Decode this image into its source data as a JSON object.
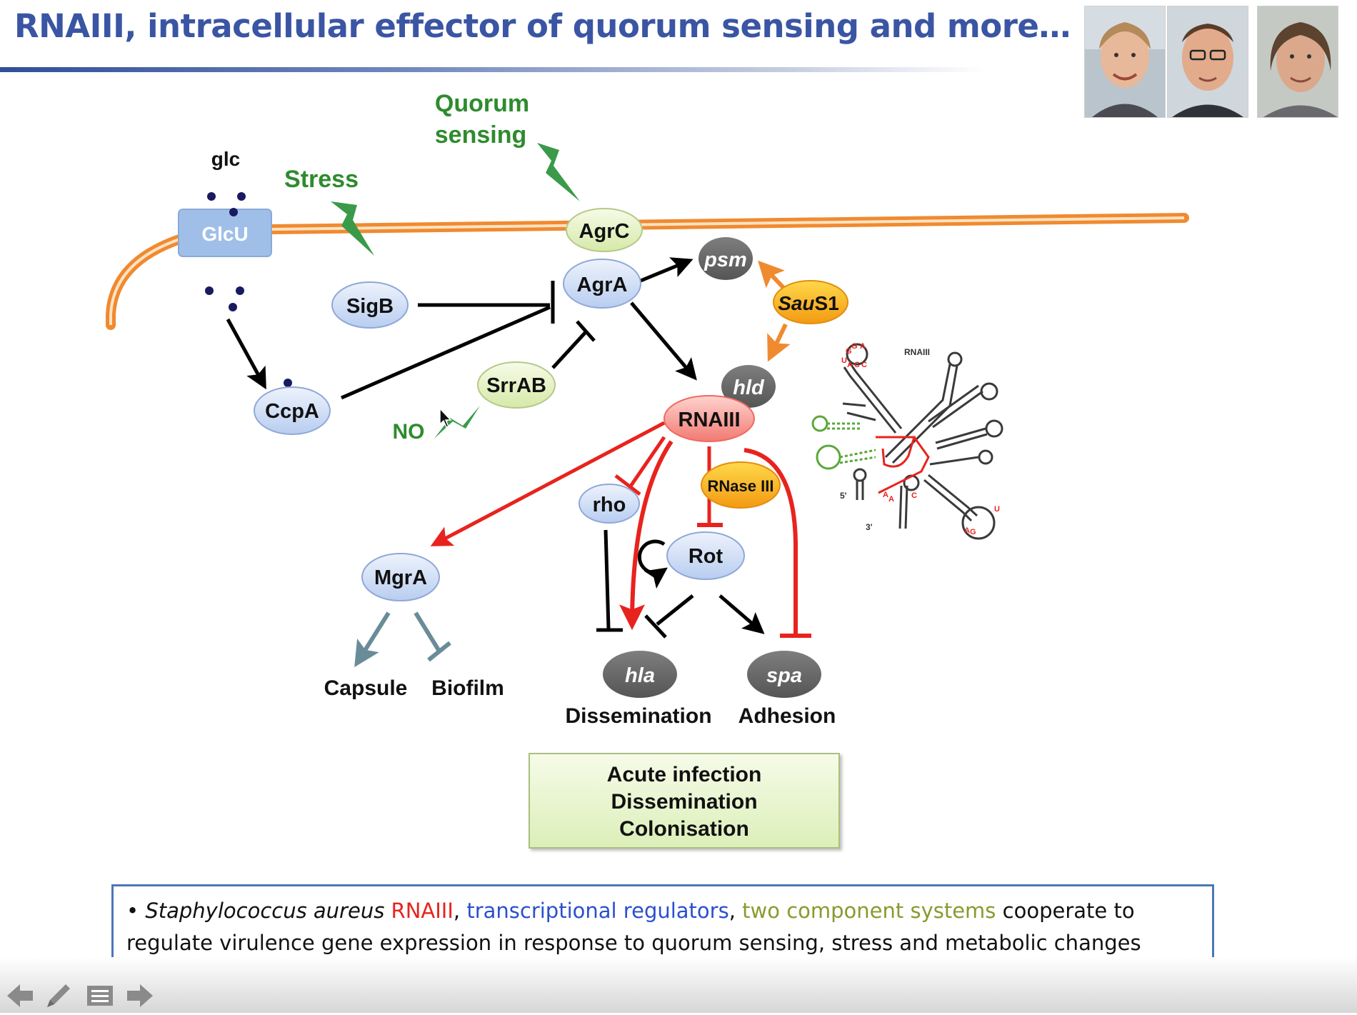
{
  "slide": {
    "title": "RNAIII, intracellular effector of quorum sensing and more…",
    "photos": [
      "portrait-1",
      "portrait-2",
      "portrait-3"
    ]
  },
  "signals": {
    "glc": "glc",
    "stress": "Stress",
    "quorum_line1": "Quorum",
    "quorum_line2": "sensing",
    "no": "NO"
  },
  "nodes": {
    "glcu": "GlcU",
    "sigb": "SigB",
    "ccpa": "CcpA",
    "agrc": "AgrC",
    "agra": "AgrA",
    "srrab": "SrrAB",
    "psm": "psm",
    "saus1_italic": "Sau",
    "saus1_rest": "S1",
    "hld": "hld",
    "rnaiii": "RNAIII",
    "rho": "rho",
    "rnase": "RNase III",
    "rot": "Rot",
    "mgra": "MgrA",
    "hla": "hla",
    "spa": "spa"
  },
  "labels": {
    "capsule": "Capsule",
    "biofilm": "Biofilm",
    "dissemination": "Dissemination",
    "adhesion": "Adhesion"
  },
  "structure": {
    "label": "RNAIII",
    "five_prime": "5'",
    "three_prime": "3'"
  },
  "outcome": {
    "line1": "Acute infection",
    "line2": "Dissemination",
    "line3": "Colonisation"
  },
  "summary": {
    "bullet": "•",
    "species": "Staphylococcus aureus",
    "rnaiii": "RNAIII",
    "sep1": ",",
    "regulators": "transcriptional regulators",
    "sep2": ",",
    "tcs": "two component systems",
    "rest1": "cooperate to",
    "rest2": "regulate virulence gene expression in response to quorum sensing, stress and metabolic changes"
  },
  "colors": {
    "title": "#3a55a3",
    "green_signal": "#2e8b2e",
    "membrane": "#f08a30",
    "rna_red": "#e8231e",
    "node_blue": "#c9d9f3",
    "node_green": "#e3f0c0",
    "node_grey": "#6a6a6a",
    "node_orange": "#f7a81c",
    "regulators_blue": "#2b4fd0",
    "tcs_olive": "#8a9a2e"
  }
}
